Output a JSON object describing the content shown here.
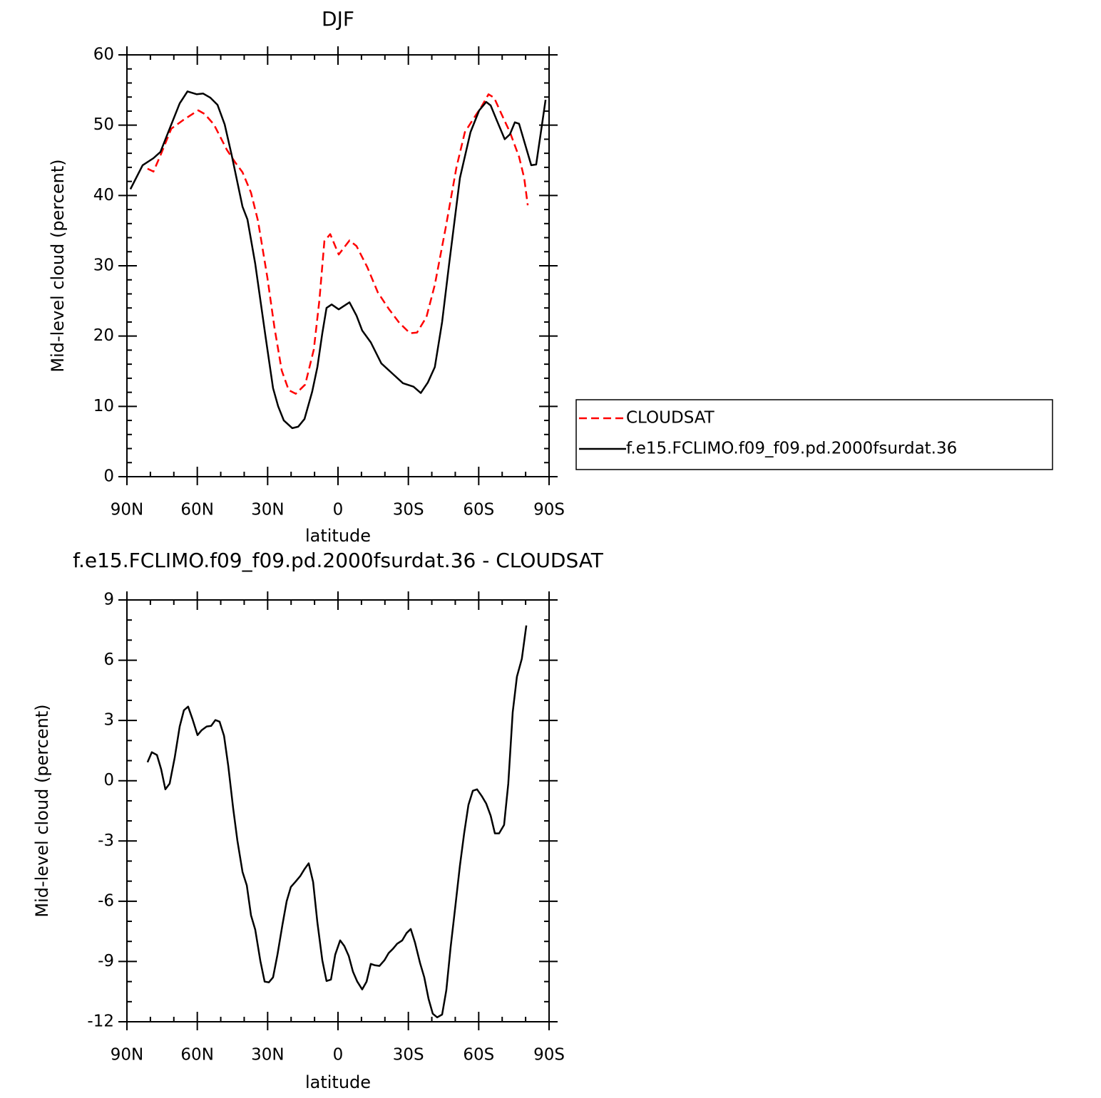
{
  "chart_data": [
    {
      "type": "line",
      "title": "DJF",
      "xlabel": "latitude",
      "ylabel": "Mid-level cloud (percent)",
      "xlim": [
        90,
        -90
      ],
      "ylim": [
        0,
        60
      ],
      "xticks": [
        {
          "value": 90,
          "label": "90N"
        },
        {
          "value": 60,
          "label": "60N"
        },
        {
          "value": 30,
          "label": "30N"
        },
        0,
        {
          "value": -30,
          "label": "30S"
        },
        {
          "value": -60,
          "label": "60S"
        },
        {
          "value": -90,
          "label": "90S"
        }
      ],
      "yticks": [
        0,
        10,
        20,
        30,
        40,
        50,
        60
      ],
      "legend": "right",
      "series": [
        {
          "name": "CLOUDSAT",
          "color": "#ff0000",
          "dash": true,
          "x": [
            81.2,
            78.7,
            75.7,
            71.1,
            65.7,
            62.0,
            59.6,
            56.9,
            52.9,
            47.4,
            43.8,
            40.7,
            37.1,
            34.1,
            30.1,
            27.1,
            24.0,
            21.0,
            18.0,
            14.0,
            10.3,
            7.9,
            5.8,
            3.3,
            -0.3,
            -4.9,
            -7.9,
            -12.5,
            -17.0,
            -21.6,
            -26.1,
            -30.7,
            -33.7,
            -37.7,
            -41.3,
            -45.9,
            -50.5,
            -54.1,
            -58.1,
            -61.1,
            -64.2,
            -66.6,
            -69.7,
            -73.3,
            -77.2,
            -79.4,
            -80.9
          ],
          "values": [
            43.8,
            43.4,
            45.7,
            49.5,
            50.8,
            51.6,
            52.1,
            51.6,
            50.1,
            46.5,
            44.7,
            43.3,
            40.4,
            36.4,
            28.3,
            21.2,
            15.1,
            12.3,
            11.8,
            13.1,
            18.1,
            25.2,
            33.5,
            34.5,
            31.6,
            33.6,
            32.8,
            29.8,
            26.2,
            23.9,
            21.9,
            20.4,
            20.5,
            22.7,
            27.3,
            35.4,
            44.0,
            49.0,
            51.1,
            52.6,
            54.4,
            53.9,
            51.6,
            49.0,
            45.5,
            42.5,
            38.6
          ]
        },
        {
          "name": "f.e15.FCLIMO.f09_f09.pd.2000fsurdat.36",
          "color": "#000000",
          "dash": false,
          "x": [
            88.5,
            83.3,
            78.7,
            75.7,
            71.8,
            67.5,
            64.2,
            60.2,
            57.5,
            54.4,
            51.4,
            48.3,
            45.3,
            40.7,
            38.6,
            35.3,
            31.0,
            27.7,
            25.5,
            23.1,
            19.5,
            17.0,
            14.3,
            11.0,
            8.8,
            6.7,
            4.9,
            2.7,
            -0.3,
            -4.9,
            -7.9,
            -10.3,
            -14.0,
            -18.5,
            -23.1,
            -27.7,
            -32.2,
            -35.3,
            -38.3,
            -41.3,
            -44.4,
            -47.4,
            -52.0,
            -56.5,
            -60.2,
            -63.2,
            -65.1,
            -67.8,
            -71.1,
            -73.3,
            -75.4,
            -77.2,
            -82.4,
            -84.5,
            -87.0,
            -88.5
          ],
          "values": [
            40.9,
            44.3,
            45.3,
            46.2,
            49.5,
            53.1,
            54.8,
            54.4,
            54.5,
            53.9,
            52.9,
            50.1,
            45.7,
            38.4,
            36.6,
            30.3,
            20.2,
            12.6,
            10.0,
            8.0,
            6.9,
            7.1,
            8.2,
            12.1,
            15.6,
            20.4,
            24.0,
            24.5,
            23.8,
            24.8,
            22.9,
            20.8,
            19.1,
            16.1,
            14.7,
            13.3,
            12.8,
            11.9,
            13.4,
            15.6,
            22.0,
            30.3,
            42.5,
            49.0,
            52.1,
            53.3,
            52.8,
            50.6,
            48.0,
            48.7,
            50.4,
            50.2,
            44.3,
            44.4,
            50.1,
            53.6
          ]
        }
      ]
    },
    {
      "type": "line",
      "title": "f.e15.FCLIMO.f09_f09.pd.2000fsurdat.36 - CLOUDSAT",
      "xlabel": "latitude",
      "ylabel": "Mid-level cloud (percent)",
      "xlim": [
        90,
        -90
      ],
      "ylim": [
        -12,
        9
      ],
      "xticks": [
        {
          "value": 90,
          "label": "90N"
        },
        {
          "value": 60,
          "label": "60N"
        },
        {
          "value": 30,
          "label": "30N"
        },
        0,
        {
          "value": -30,
          "label": "30S"
        },
        {
          "value": -60,
          "label": "60S"
        },
        {
          "value": -90,
          "label": "90S"
        }
      ],
      "yticks": [
        -12,
        -9,
        -6,
        -3,
        0,
        3,
        6,
        9
      ],
      "series": [
        {
          "color": "#000000",
          "dash": false,
          "x": [
            81.2,
            79.4,
            77.2,
            75.4,
            73.6,
            71.8,
            69.6,
            67.5,
            65.7,
            63.9,
            62.0,
            59.9,
            58.1,
            56.0,
            54.1,
            52.3,
            50.5,
            48.6,
            46.8,
            44.7,
            42.9,
            40.7,
            38.9,
            37.1,
            35.3,
            33.1,
            31.3,
            29.5,
            27.7,
            25.8,
            23.7,
            21.9,
            20.1,
            18.2,
            16.1,
            14.3,
            12.5,
            10.6,
            8.8,
            6.7,
            4.9,
            3.0,
            1.2,
            -0.9,
            -2.7,
            -4.6,
            -6.4,
            -8.2,
            -10.3,
            -12.2,
            -14.0,
            -15.8,
            -17.7,
            -19.8,
            -21.6,
            -23.4,
            -25.2,
            -27.4,
            -29.2,
            -31.0,
            -32.8,
            -35.0,
            -36.8,
            -38.6,
            -40.4,
            -42.3,
            -44.4,
            -46.2,
            -48.0,
            -49.9,
            -52.0,
            -53.8,
            -55.6,
            -57.5,
            -59.3,
            -61.4,
            -63.2,
            -65.1,
            -66.9,
            -68.7,
            -70.8,
            -72.6,
            -74.5,
            -76.3,
            -78.4,
            -80.3
          ],
          "values": [
            0.92,
            1.42,
            1.28,
            0.57,
            -0.43,
            -0.14,
            1.17,
            2.7,
            3.51,
            3.69,
            3.05,
            2.27,
            2.52,
            2.7,
            2.73,
            3.02,
            2.94,
            2.23,
            0.74,
            -1.38,
            -2.98,
            -4.54,
            -5.21,
            -6.7,
            -7.41,
            -8.97,
            -10.0,
            -10.04,
            -9.79,
            -8.66,
            -7.17,
            -6.0,
            -5.29,
            -5.04,
            -4.75,
            -4.4,
            -4.11,
            -5.04,
            -7.06,
            -8.94,
            -9.97,
            -9.9,
            -8.66,
            -7.95,
            -8.23,
            -8.73,
            -9.51,
            -10.0,
            -10.39,
            -10.0,
            -9.12,
            -9.19,
            -9.22,
            -8.94,
            -8.58,
            -8.37,
            -8.12,
            -7.95,
            -7.59,
            -7.38,
            -8.05,
            -9.08,
            -9.79,
            -10.86,
            -11.6,
            -11.78,
            -11.64,
            -10.43,
            -8.3,
            -6.39,
            -4.22,
            -2.62,
            -1.21,
            -0.5,
            -0.43,
            -0.78,
            -1.14,
            -1.74,
            -2.62,
            -2.62,
            -2.2,
            -0.14,
            3.41,
            5.18,
            6.07,
            7.73
          ]
        }
      ]
    }
  ]
}
